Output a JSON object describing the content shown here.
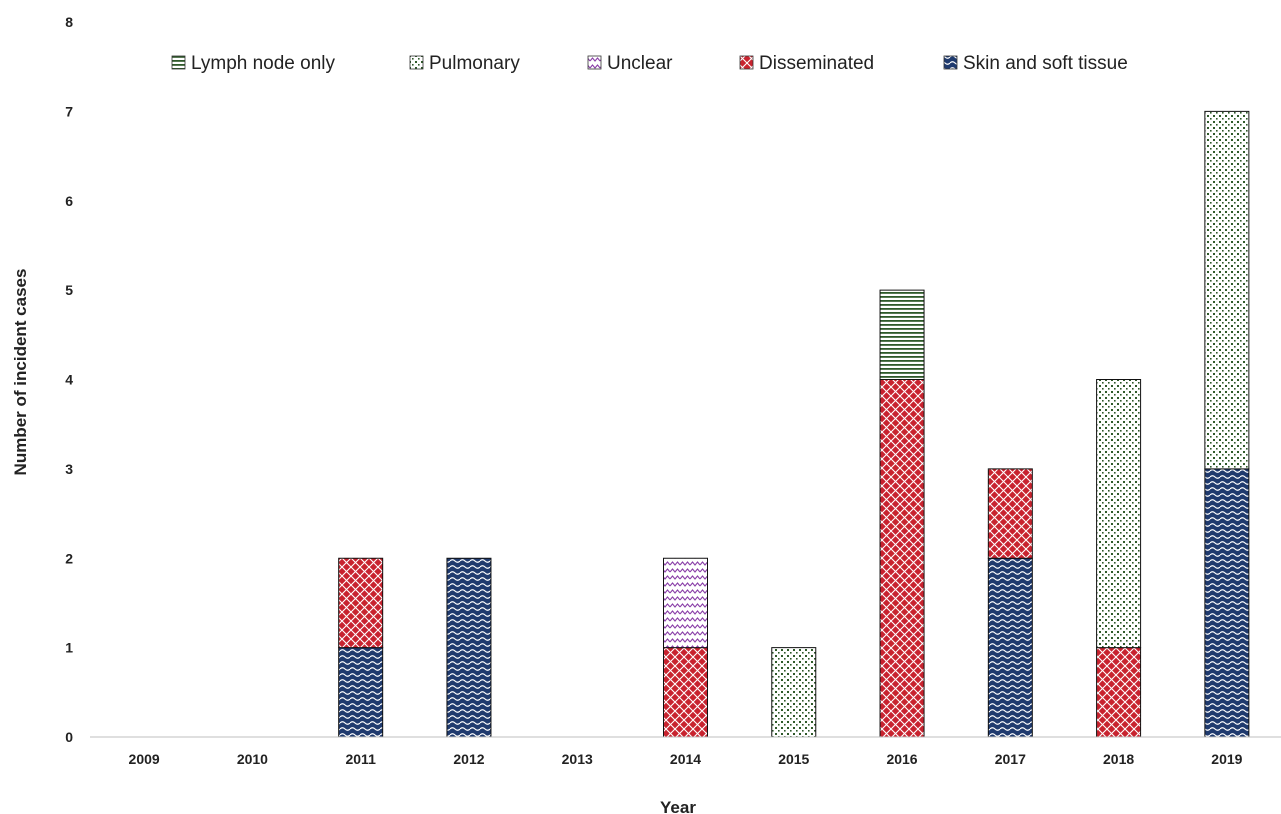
{
  "chart_data": {
    "type": "bar",
    "stacked": true,
    "categories": [
      "2009",
      "2010",
      "2011",
      "2012",
      "2013",
      "2014",
      "2015",
      "2016",
      "2017",
      "2018",
      "2019"
    ],
    "series": [
      {
        "name": "Skin and soft tissue",
        "color": "#1f3a6e",
        "pattern": "wave",
        "values": [
          0,
          0,
          1,
          2,
          0,
          0,
          0,
          0,
          2,
          0,
          3
        ]
      },
      {
        "name": "Disseminated",
        "color": "#c8232f",
        "pattern": "diamond",
        "values": [
          0,
          0,
          1,
          0,
          0,
          1,
          0,
          4,
          1,
          1,
          0
        ]
      },
      {
        "name": "Unclear",
        "color": "#8a3fa8",
        "pattern": "zigzag",
        "values": [
          0,
          0,
          0,
          0,
          0,
          1,
          0,
          0,
          0,
          0,
          0
        ]
      },
      {
        "name": "Pulmonary",
        "color": "#2f5a2a",
        "pattern": "dots",
        "values": [
          0,
          0,
          0,
          0,
          0,
          0,
          1,
          0,
          0,
          3,
          4
        ]
      },
      {
        "name": "Lymph node only",
        "color": "#2f5a2a",
        "pattern": "hlines",
        "values": [
          0,
          0,
          0,
          0,
          0,
          0,
          0,
          1,
          0,
          0,
          0
        ]
      }
    ],
    "legend_order": [
      "Lymph node only",
      "Pulmonary",
      "Unclear",
      "Disseminated",
      "Skin and soft tissue"
    ],
    "legend_position": "top",
    "xlabel": "Year",
    "ylabel": "Number of incident cases",
    "ylim": [
      0,
      8
    ],
    "yticks": [
      0,
      1,
      2,
      3,
      4,
      5,
      6,
      7,
      8
    ],
    "grid": false
  }
}
